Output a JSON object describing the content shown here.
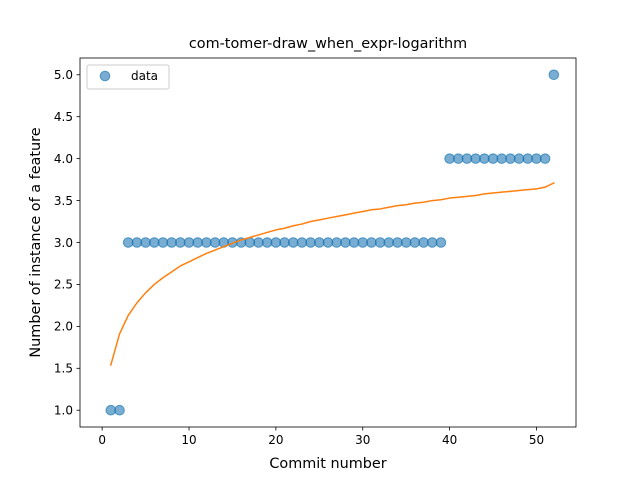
{
  "chart_data": {
    "type": "scatter",
    "title": "com-tomer-draw_when_expr-logarithm",
    "xlabel": "Commit number",
    "ylabel": "Number of instance of a feature",
    "xlim": [
      -2.55,
      54.55
    ],
    "ylim": [
      0.8,
      5.2
    ],
    "x_ticks": [
      0,
      10,
      20,
      30,
      40,
      50
    ],
    "x_tick_labels": [
      "0",
      "10",
      "20",
      "30",
      "40",
      "50"
    ],
    "y_ticks": [
      1.0,
      1.5,
      2.0,
      2.5,
      3.0,
      3.5,
      4.0,
      4.5,
      5.0
    ],
    "y_tick_labels": [
      "1.0",
      "1.5",
      "2.0",
      "2.5",
      "3.0",
      "3.5",
      "4.0",
      "4.5",
      "5.0"
    ],
    "grid": false,
    "legend": {
      "position": "top-left",
      "entries": [
        "data"
      ]
    },
    "series": [
      {
        "name": "data",
        "kind": "scatter",
        "color": "#1f77b4",
        "x": [
          1,
          2,
          3,
          4,
          5,
          6,
          7,
          8,
          9,
          10,
          11,
          12,
          13,
          14,
          15,
          16,
          17,
          18,
          19,
          20,
          21,
          22,
          23,
          24,
          25,
          26,
          27,
          28,
          29,
          30,
          31,
          32,
          33,
          34,
          35,
          36,
          37,
          38,
          39,
          40,
          41,
          42,
          43,
          44,
          45,
          46,
          47,
          48,
          49,
          50,
          51,
          52
        ],
        "y": [
          1,
          1,
          3,
          3,
          3,
          3,
          3,
          3,
          3,
          3,
          3,
          3,
          3,
          3,
          3,
          3,
          3,
          3,
          3,
          3,
          3,
          3,
          3,
          3,
          3,
          3,
          3,
          3,
          3,
          3,
          3,
          3,
          3,
          3,
          3,
          3,
          3,
          3,
          3,
          4,
          4,
          4,
          4,
          4,
          4,
          4,
          4,
          4,
          4,
          4,
          4,
          5
        ]
      },
      {
        "kind": "line",
        "color": "#ff7f0e",
        "x": [
          1,
          2,
          3,
          4,
          5,
          6,
          7,
          8,
          9,
          10,
          11,
          12,
          13,
          14,
          15,
          16,
          17,
          18,
          19,
          20,
          21,
          22,
          23,
          24,
          25,
          26,
          27,
          28,
          29,
          30,
          31,
          32,
          33,
          34,
          35,
          36,
          37,
          38,
          39,
          40,
          41,
          42,
          43,
          44,
          45,
          46,
          47,
          48,
          49,
          50,
          51,
          52
        ],
        "y": [
          1.54,
          1.91,
          2.13,
          2.28,
          2.4,
          2.5,
          2.58,
          2.65,
          2.72,
          2.77,
          2.82,
          2.87,
          2.91,
          2.95,
          2.99,
          3.03,
          3.06,
          3.09,
          3.12,
          3.15,
          3.17,
          3.2,
          3.22,
          3.25,
          3.27,
          3.29,
          3.31,
          3.33,
          3.35,
          3.37,
          3.39,
          3.4,
          3.42,
          3.44,
          3.45,
          3.47,
          3.48,
          3.5,
          3.51,
          3.53,
          3.54,
          3.55,
          3.56,
          3.58,
          3.59,
          3.6,
          3.61,
          3.62,
          3.63,
          3.64,
          3.66,
          3.71
        ]
      }
    ]
  }
}
